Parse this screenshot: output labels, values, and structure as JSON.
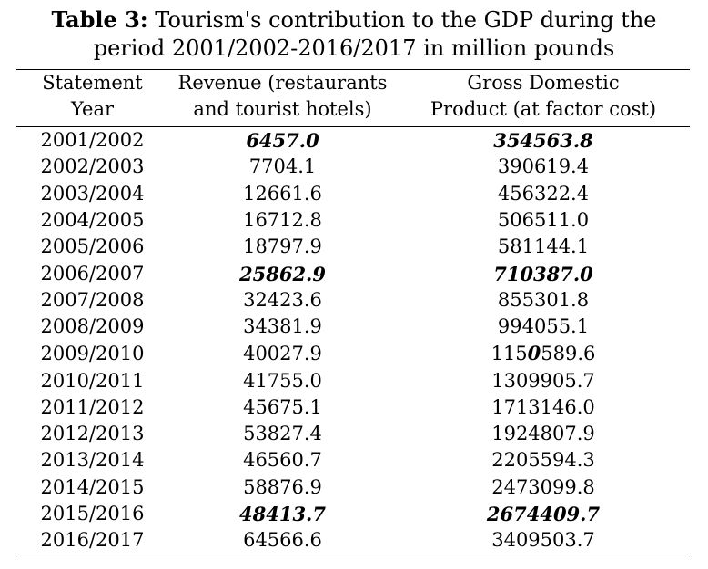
{
  "caption": {
    "label": "Table 3:",
    "text_line1": " Tourism's contribution to the GDP during the",
    "text_line2": "period 2001/2002-2016/2017 in million pounds"
  },
  "headers": {
    "col1_line1": "Statement",
    "col1_line2": "Year",
    "col2_line1": "Revenue (restaurants",
    "col2_line2": "and tourist hotels)",
    "col3_line1": "Gross Domestic",
    "col3_line2": "Product (at factor cost)"
  },
  "rows": [
    {
      "year": "2001/2002",
      "revenue": "6457.0",
      "gdp": "354563.8",
      "highlight": true
    },
    {
      "year": "2002/2003",
      "revenue": "7704.1",
      "gdp": "390619.4",
      "highlight": false
    },
    {
      "year": "2003/2004",
      "revenue": "12661.6",
      "gdp": "456322.4",
      "highlight": false
    },
    {
      "year": "2004/2005",
      "revenue": "16712.8",
      "gdp": "506511.0",
      "highlight": false
    },
    {
      "year": "2005/2006",
      "revenue": "18797.9",
      "gdp": "581144.1",
      "highlight": false
    },
    {
      "year": "2006/2007",
      "revenue": "25862.9",
      "gdp": "710387.0",
      "highlight": true
    },
    {
      "year": "2007/2008",
      "revenue": "32423.6",
      "gdp": "855301.8",
      "highlight": false
    },
    {
      "year": "2008/2009",
      "revenue": "34381.9",
      "gdp": "994055.1",
      "highlight": false
    },
    {
      "year": "2009/2010",
      "revenue": "40027.9",
      "gdp_pre": "115",
      "gdp_mark": "0",
      "gdp_post": "589.6",
      "highlight": false
    },
    {
      "year": "2010/2011",
      "revenue": "41755.0",
      "gdp": "1309905.7",
      "highlight": false
    },
    {
      "year": "2011/2012",
      "revenue": "45675.1",
      "gdp": "1713146.0",
      "highlight": false
    },
    {
      "year": "2012/2013",
      "revenue": "53827.4",
      "gdp": "1924807.9",
      "highlight": false
    },
    {
      "year": "2013/2014",
      "revenue": "46560.7",
      "gdp": "2205594.3",
      "highlight": false
    },
    {
      "year": "2014/2015",
      "revenue": "58876.9",
      "gdp": "2473099.8",
      "highlight": false
    },
    {
      "year": "2015/2016",
      "revenue": "48413.7",
      "gdp": "2674409.7",
      "highlight": true
    },
    {
      "year": "2016/2017",
      "revenue": "64566.6",
      "gdp": "3409503.7",
      "highlight": false
    }
  ]
}
